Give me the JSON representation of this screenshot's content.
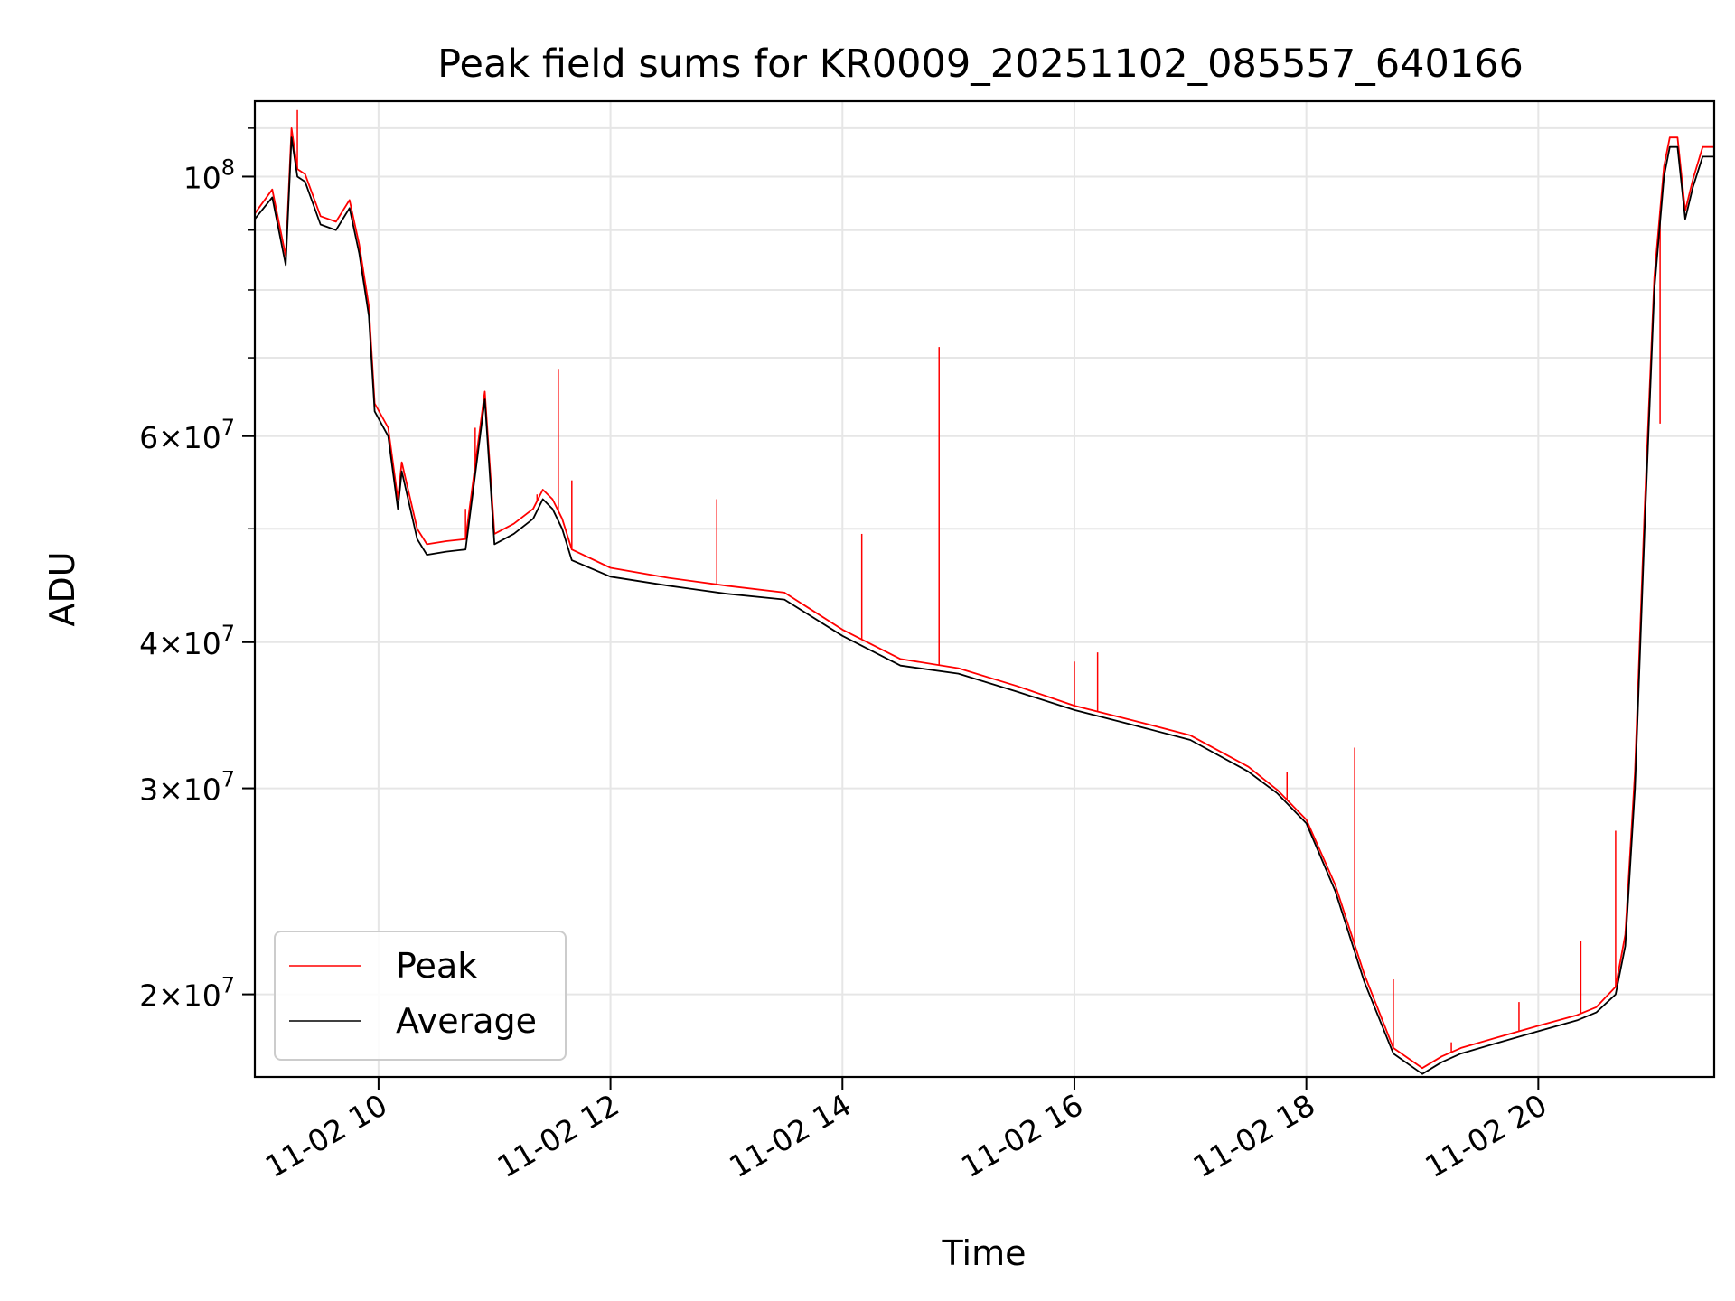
{
  "chart_data": {
    "type": "line",
    "title": "Peak field sums for KR0009_20251102_085557_640166",
    "xlabel": "Time",
    "ylabel": "ADU",
    "x_scale": "time",
    "y_scale": "log",
    "xlim": [
      "11-02 08:56",
      "11-02 21:31"
    ],
    "ylim": [
      17000000,
      116000000
    ],
    "x_ticks": [
      "11-02 10",
      "11-02 12",
      "11-02 14",
      "11-02 16",
      "11-02 18",
      "11-02 20"
    ],
    "y_ticks": [
      {
        "value": 20000000,
        "mantissa": "2",
        "times": "×",
        "base": "10",
        "exponent": "7"
      },
      {
        "value": 30000000,
        "mantissa": "3",
        "times": "×",
        "base": "10",
        "exponent": "7"
      },
      {
        "value": 40000000,
        "mantissa": "4",
        "times": "×",
        "base": "10",
        "exponent": "7"
      },
      {
        "value": 60000000,
        "mantissa": "6",
        "times": "×",
        "base": "10",
        "exponent": "7"
      },
      {
        "value": 100000000,
        "mantissa": "",
        "times": "",
        "base": "10",
        "exponent": "8"
      }
    ],
    "grid": true,
    "legend_position": "lower-left",
    "series": [
      {
        "name": "Average",
        "color": "#000000",
        "x": [
          "11-02 08:56",
          "11-02 09:05",
          "11-02 09:12",
          "11-02 09:15",
          "11-02 09:18",
          "11-02 09:22",
          "11-02 09:30",
          "11-02 09:38",
          "11-02 09:45",
          "11-02 09:50",
          "11-02 09:55",
          "11-02 09:58",
          "11-02 10:05",
          "11-02 10:10",
          "11-02 10:12",
          "11-02 10:20",
          "11-02 10:25",
          "11-02 10:35",
          "11-02 10:45",
          "11-02 10:55",
          "11-02 11:00",
          "11-02 11:05",
          "11-02 11:10",
          "11-02 11:20",
          "11-02 11:25",
          "11-02 11:30",
          "11-02 11:35",
          "11-02 11:40",
          "11-02 12:00",
          "11-02 12:30",
          "11-02 13:00",
          "11-02 13:30",
          "11-02 14:00",
          "11-02 14:30",
          "11-02 15:00",
          "11-02 15:30",
          "11-02 16:00",
          "11-02 16:30",
          "11-02 17:00",
          "11-02 17:30",
          "11-02 17:45",
          "11-02 18:00",
          "11-02 18:15",
          "11-02 18:30",
          "11-02 18:45",
          "11-02 19:00",
          "11-02 19:10",
          "11-02 19:20",
          "11-02 19:40",
          "11-02 20:00",
          "11-02 20:20",
          "11-02 20:30",
          "11-02 20:40",
          "11-02 20:45",
          "11-02 20:50",
          "11-02 20:55",
          "11-02 21:00",
          "11-02 21:05",
          "11-02 21:08",
          "11-02 21:12",
          "11-02 21:16",
          "11-02 21:20",
          "11-02 21:25",
          "11-02 21:31"
        ],
        "y": [
          92000000,
          96000000,
          84000000,
          108000000,
          100000000,
          99000000,
          91000000,
          90000000,
          94000000,
          86000000,
          76000000,
          63000000,
          60000000,
          52000000,
          56000000,
          49000000,
          47500000,
          47800000,
          48000000,
          64500000,
          48500000,
          49000000,
          49500000,
          51000000,
          53000000,
          52000000,
          50000000,
          47000000,
          45500000,
          44700000,
          44000000,
          43500000,
          40500000,
          38200000,
          37600000,
          36300000,
          35000000,
          34000000,
          33000000,
          31000000,
          29700000,
          28000000,
          24500000,
          20500000,
          17800000,
          17100000,
          17500000,
          17800000,
          18200000,
          18600000,
          19000000,
          19300000,
          20000000,
          22000000,
          30000000,
          50000000,
          80000000,
          100000000,
          106000000,
          106000000,
          92000000,
          98000000,
          104000000,
          104000000
        ]
      },
      {
        "name": "Peak",
        "color": "#ff0000",
        "x": [
          "11-02 08:56",
          "11-02 09:05",
          "11-02 09:12",
          "11-02 09:15",
          "11-02 09:18",
          "11-02 09:22",
          "11-02 09:30",
          "11-02 09:38",
          "11-02 09:45",
          "11-02 09:50",
          "11-02 09:55",
          "11-02 09:58",
          "11-02 10:05",
          "11-02 10:10",
          "11-02 10:12",
          "11-02 10:20",
          "11-02 10:25",
          "11-02 10:35",
          "11-02 10:45",
          "11-02 10:55",
          "11-02 11:00",
          "11-02 11:05",
          "11-02 11:10",
          "11-02 11:20",
          "11-02 11:25",
          "11-02 11:30",
          "11-02 11:35",
          "11-02 11:40",
          "11-02 12:00",
          "11-02 12:30",
          "11-02 13:00",
          "11-02 13:30",
          "11-02 14:00",
          "11-02 14:30",
          "11-02 15:00",
          "11-02 15:30",
          "11-02 16:00",
          "11-02 16:30",
          "11-02 17:00",
          "11-02 17:30",
          "11-02 17:45",
          "11-02 18:00",
          "11-02 18:15",
          "11-02 18:30",
          "11-02 18:45",
          "11-02 19:00",
          "11-02 19:10",
          "11-02 19:20",
          "11-02 19:40",
          "11-02 20:00",
          "11-02 20:20",
          "11-02 20:30",
          "11-02 20:40",
          "11-02 20:45",
          "11-02 20:50",
          "11-02 20:55",
          "11-02 21:00",
          "11-02 21:05",
          "11-02 21:08",
          "11-02 21:12",
          "11-02 21:16",
          "11-02 21:20",
          "11-02 21:25",
          "11-02 21:31"
        ],
        "y": [
          93000000,
          97500000,
          85500000,
          110000000,
          101500000,
          100500000,
          92500000,
          91500000,
          95500000,
          87500000,
          77500000,
          64000000,
          61000000,
          53000000,
          57000000,
          50000000,
          48500000,
          48800000,
          49000000,
          65500000,
          49500000,
          50000000,
          50500000,
          52000000,
          54000000,
          53000000,
          51000000,
          48000000,
          46300000,
          45400000,
          44700000,
          44100000,
          41000000,
          38700000,
          38000000,
          36700000,
          35300000,
          34300000,
          33300000,
          31300000,
          29900000,
          28200000,
          24800000,
          20800000,
          18000000,
          17300000,
          17700000,
          18000000,
          18400000,
          18800000,
          19200000,
          19500000,
          20300000,
          22500000,
          31000000,
          52000000,
          82000000,
          102000000,
          108000000,
          108000000,
          93500000,
          99500000,
          106000000,
          106000000
        ],
        "spikes": [
          {
            "x": "11-02 09:18",
            "y": 114000000
          },
          {
            "x": "11-02 10:45",
            "y": 52000000
          },
          {
            "x": "11-02 10:50",
            "y": 61000000
          },
          {
            "x": "11-02 11:22",
            "y": 53500000
          },
          {
            "x": "11-02 11:33",
            "y": 68500000
          },
          {
            "x": "11-02 11:40",
            "y": 55000000
          },
          {
            "x": "11-02 12:55",
            "y": 53000000
          },
          {
            "x": "11-02 14:10",
            "y": 49500000
          },
          {
            "x": "11-02 14:50",
            "y": 71500000
          },
          {
            "x": "11-02 16:00",
            "y": 38500000
          },
          {
            "x": "11-02 16:12",
            "y": 39200000
          },
          {
            "x": "11-02 17:50",
            "y": 31000000
          },
          {
            "x": "11-02 18:25",
            "y": 32500000
          },
          {
            "x": "11-02 18:45",
            "y": 20600000
          },
          {
            "x": "11-02 19:15",
            "y": 18200000
          },
          {
            "x": "11-02 19:50",
            "y": 19700000
          },
          {
            "x": "11-02 20:22",
            "y": 22200000
          },
          {
            "x": "11-02 20:40",
            "y": 27600000
          },
          {
            "x": "11-02 21:03",
            "y": 61500000
          }
        ]
      }
    ]
  }
}
